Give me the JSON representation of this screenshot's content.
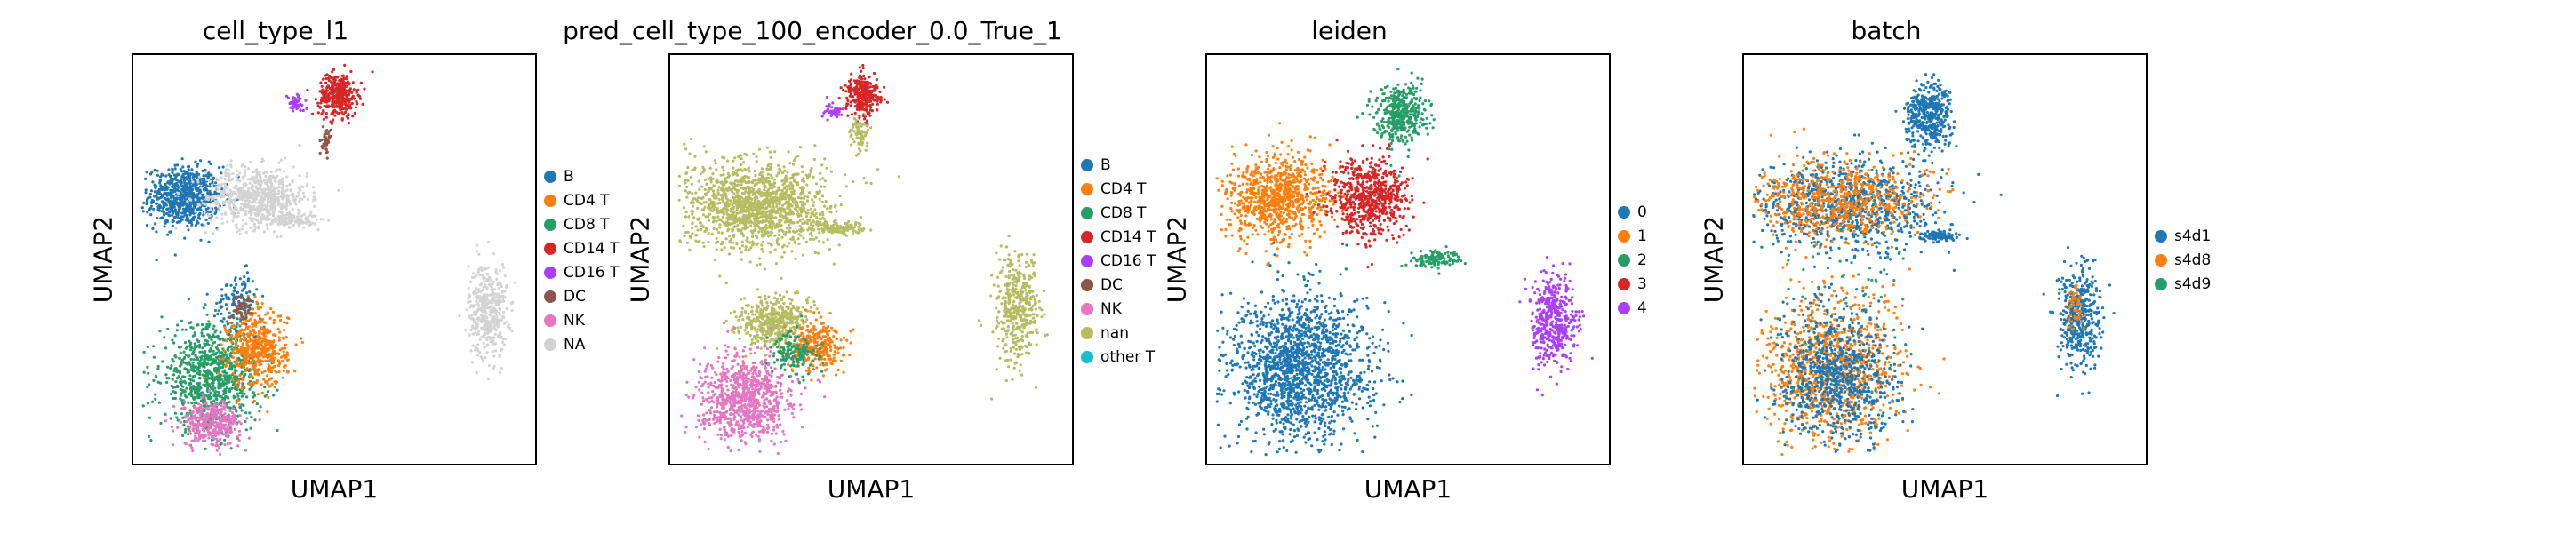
{
  "chart_data": [
    {
      "type": "scatter",
      "title": "cell_type_l1",
      "xlabel": "UMAP1",
      "ylabel": "UMAP2",
      "legend_position": "right",
      "legend": [
        {
          "label": "B",
          "color": "#1f77b4"
        },
        {
          "label": "CD4 T",
          "color": "#ff7f0e"
        },
        {
          "label": "CD8 T",
          "color": "#279e68"
        },
        {
          "label": "CD14 T",
          "color": "#d62728"
        },
        {
          "label": "CD16 T",
          "color": "#aa40fc"
        },
        {
          "label": "DC",
          "color": "#8c564b"
        },
        {
          "label": "NK",
          "color": "#e377c2"
        },
        {
          "label": "NA",
          "color": "#d3d3d3"
        }
      ],
      "clusters": [
        {
          "color": "#1f77b4",
          "cx": 0.11,
          "cy": 0.66,
          "rx": 0.085,
          "ry": 0.07,
          "n": 750
        },
        {
          "color": "#d3d3d3",
          "cx": 0.3,
          "cy": 0.66,
          "rx": 0.12,
          "ry": 0.07,
          "n": 700
        },
        {
          "color": "#d3d3d3",
          "cx": 0.39,
          "cy": 0.6,
          "rx": 0.06,
          "ry": 0.015,
          "n": 120
        },
        {
          "color": "#d3d3d3",
          "cx": 0.9,
          "cy": 0.37,
          "rx": 0.045,
          "ry": 0.11,
          "n": 420
        },
        {
          "color": "#d62728",
          "cx": 0.51,
          "cy": 0.92,
          "rx": 0.045,
          "ry": 0.05,
          "n": 380
        },
        {
          "color": "#aa40fc",
          "cx": 0.4,
          "cy": 0.9,
          "rx": 0.02,
          "ry": 0.02,
          "n": 60
        },
        {
          "color": "#8c564b",
          "cx": 0.48,
          "cy": 0.8,
          "rx": 0.01,
          "ry": 0.03,
          "n": 40
        },
        {
          "color": "#279e68",
          "cx": 0.18,
          "cy": 0.2,
          "rx": 0.12,
          "ry": 0.12,
          "n": 950
        },
        {
          "color": "#ff7f0e",
          "cx": 0.3,
          "cy": 0.27,
          "rx": 0.07,
          "ry": 0.09,
          "n": 500
        },
        {
          "color": "#e377c2",
          "cx": 0.18,
          "cy": 0.08,
          "rx": 0.07,
          "ry": 0.05,
          "n": 350
        },
        {
          "color": "#1f77b4",
          "cx": 0.25,
          "cy": 0.4,
          "rx": 0.05,
          "ry": 0.06,
          "n": 100
        },
        {
          "color": "#8c564b",
          "cx": 0.26,
          "cy": 0.38,
          "rx": 0.03,
          "ry": 0.03,
          "n": 50
        }
      ]
    },
    {
      "type": "scatter",
      "title": "pred_cell_type_100_encoder_0.0_True_1",
      "xlabel": "UMAP1",
      "ylabel": "UMAP2",
      "legend_position": "right",
      "legend": [
        {
          "label": "B",
          "color": "#1f77b4"
        },
        {
          "label": "CD4 T",
          "color": "#ff7f0e"
        },
        {
          "label": "CD8 T",
          "color": "#279e68"
        },
        {
          "label": "CD14 T",
          "color": "#d62728"
        },
        {
          "label": "CD16 T",
          "color": "#aa40fc"
        },
        {
          "label": "DC",
          "color": "#8c564b"
        },
        {
          "label": "NK",
          "color": "#e377c2"
        },
        {
          "label": "nan",
          "color": "#b5bd61"
        },
        {
          "label": "other T",
          "color": "#17becf"
        }
      ],
      "clusters": [
        {
          "color": "#b5bd61",
          "cx": 0.2,
          "cy": 0.64,
          "rx": 0.17,
          "ry": 0.1,
          "n": 1400
        },
        {
          "color": "#b5bd61",
          "cx": 0.42,
          "cy": 0.58,
          "rx": 0.06,
          "ry": 0.015,
          "n": 120
        },
        {
          "color": "#b5bd61",
          "cx": 0.88,
          "cy": 0.37,
          "rx": 0.05,
          "ry": 0.12,
          "n": 420
        },
        {
          "color": "#b5bd61",
          "cx": 0.24,
          "cy": 0.34,
          "rx": 0.09,
          "ry": 0.06,
          "n": 450
        },
        {
          "color": "#d62728",
          "cx": 0.48,
          "cy": 0.92,
          "rx": 0.04,
          "ry": 0.05,
          "n": 300
        },
        {
          "color": "#aa40fc",
          "cx": 0.4,
          "cy": 0.88,
          "rx": 0.02,
          "ry": 0.02,
          "n": 50
        },
        {
          "color": "#b5bd61",
          "cx": 0.47,
          "cy": 0.82,
          "rx": 0.02,
          "ry": 0.04,
          "n": 70
        },
        {
          "color": "#e377c2",
          "cx": 0.17,
          "cy": 0.14,
          "rx": 0.11,
          "ry": 0.1,
          "n": 850
        },
        {
          "color": "#ff7f0e",
          "cx": 0.36,
          "cy": 0.28,
          "rx": 0.06,
          "ry": 0.06,
          "n": 280
        },
        {
          "color": "#279e68",
          "cx": 0.3,
          "cy": 0.26,
          "rx": 0.06,
          "ry": 0.05,
          "n": 150
        }
      ]
    },
    {
      "type": "scatter",
      "title": "leiden",
      "xlabel": "UMAP1",
      "ylabel": "UMAP2",
      "legend_position": "right",
      "legend": [
        {
          "label": "0",
          "color": "#1f77b4"
        },
        {
          "label": "1",
          "color": "#ff7f0e"
        },
        {
          "label": "2",
          "color": "#279e68"
        },
        {
          "label": "3",
          "color": "#d62728"
        },
        {
          "label": "4",
          "color": "#aa40fc"
        }
      ],
      "clusters": [
        {
          "color": "#ff7f0e",
          "cx": 0.16,
          "cy": 0.66,
          "rx": 0.13,
          "ry": 0.1,
          "n": 900
        },
        {
          "color": "#d62728",
          "cx": 0.4,
          "cy": 0.66,
          "rx": 0.09,
          "ry": 0.09,
          "n": 650
        },
        {
          "color": "#279e68",
          "cx": 0.57,
          "cy": 0.5,
          "rx": 0.06,
          "ry": 0.02,
          "n": 120
        },
        {
          "color": "#279e68",
          "cx": 0.48,
          "cy": 0.87,
          "rx": 0.06,
          "ry": 0.07,
          "n": 420
        },
        {
          "color": "#1f77b4",
          "cx": 0.22,
          "cy": 0.22,
          "rx": 0.16,
          "ry": 0.17,
          "n": 1700
        },
        {
          "color": "#aa40fc",
          "cx": 0.88,
          "cy": 0.34,
          "rx": 0.055,
          "ry": 0.11,
          "n": 450
        }
      ]
    },
    {
      "type": "scatter",
      "title": "batch",
      "xlabel": "UMAP1",
      "ylabel": "UMAP2",
      "legend_position": "right",
      "legend": [
        {
          "label": "s4d1",
          "color": "#1f77b4"
        },
        {
          "label": "s4d8",
          "color": "#ff7f0e"
        },
        {
          "label": "s4d9",
          "color": "#279e68"
        }
      ],
      "clusters": [
        {
          "color": "#1f77b4",
          "cx": 0.24,
          "cy": 0.64,
          "rx": 0.22,
          "ry": 0.11,
          "n": 900
        },
        {
          "color": "#ff7f0e",
          "cx": 0.22,
          "cy": 0.65,
          "rx": 0.2,
          "ry": 0.09,
          "n": 700
        },
        {
          "color": "#1f77b4",
          "cx": 0.48,
          "cy": 0.56,
          "rx": 0.05,
          "ry": 0.012,
          "n": 100
        },
        {
          "color": "#1f77b4",
          "cx": 0.46,
          "cy": 0.87,
          "rx": 0.05,
          "ry": 0.07,
          "n": 420
        },
        {
          "color": "#ff7f0e",
          "cx": 0.2,
          "cy": 0.22,
          "rx": 0.16,
          "ry": 0.17,
          "n": 1000
        },
        {
          "color": "#1f77b4",
          "cx": 0.22,
          "cy": 0.2,
          "rx": 0.14,
          "ry": 0.16,
          "n": 800
        },
        {
          "color": "#1f77b4",
          "cx": 0.85,
          "cy": 0.35,
          "rx": 0.05,
          "ry": 0.11,
          "n": 420
        },
        {
          "color": "#ff7f0e",
          "cx": 0.84,
          "cy": 0.38,
          "rx": 0.02,
          "ry": 0.05,
          "n": 50
        },
        {
          "color": "#279e68",
          "cx": 0.25,
          "cy": 0.42,
          "rx": 0.15,
          "ry": 0.2,
          "n": 60
        }
      ]
    }
  ]
}
